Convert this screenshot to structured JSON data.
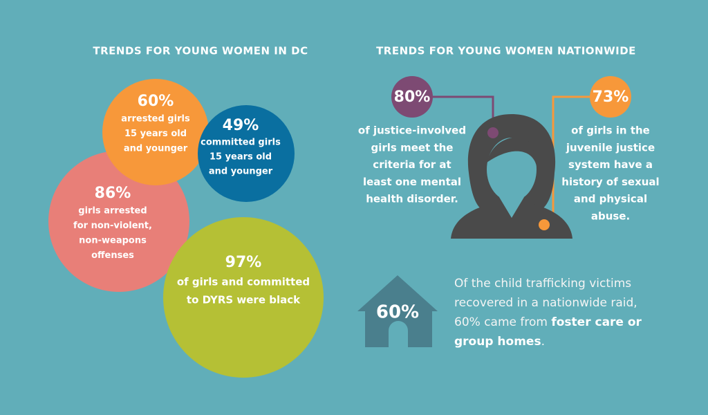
{
  "left": {
    "title": "TRENDS FOR YOUNG WOMEN IN DC",
    "bubbles": [
      {
        "stat": "86%",
        "lines": [
          "girls arrested",
          "for non-violent,",
          "non-weapons",
          "offenses"
        ]
      },
      {
        "stat": "60%",
        "lines": [
          "arrested girls",
          "15 years old",
          "and younger"
        ]
      },
      {
        "stat": "49%",
        "lines": [
          "committed girls",
          "15 years old",
          "and younger"
        ]
      },
      {
        "stat": "97%",
        "lines": [
          "of girls and committed",
          "to DYRS were black"
        ]
      }
    ]
  },
  "right": {
    "title": "TRENDS FOR YOUNG WOMEN NATIONWIDE",
    "callouts": [
      {
        "stat": "80%",
        "lines": [
          "of justice-involved",
          "girls meet the",
          "criteria for at",
          "least one mental",
          "health disorder."
        ]
      },
      {
        "stat": "73%",
        "lines": [
          "of girls in the",
          "juvenile justice",
          "system have a",
          "history of sexual",
          "and physical",
          "abuse."
        ]
      }
    ]
  },
  "house": {
    "stat": "60%",
    "text": "Of the child trafficking victims recovered in a nationwide raid, 60% came from ",
    "bold": "foster care or group homes",
    "end": "."
  }
}
